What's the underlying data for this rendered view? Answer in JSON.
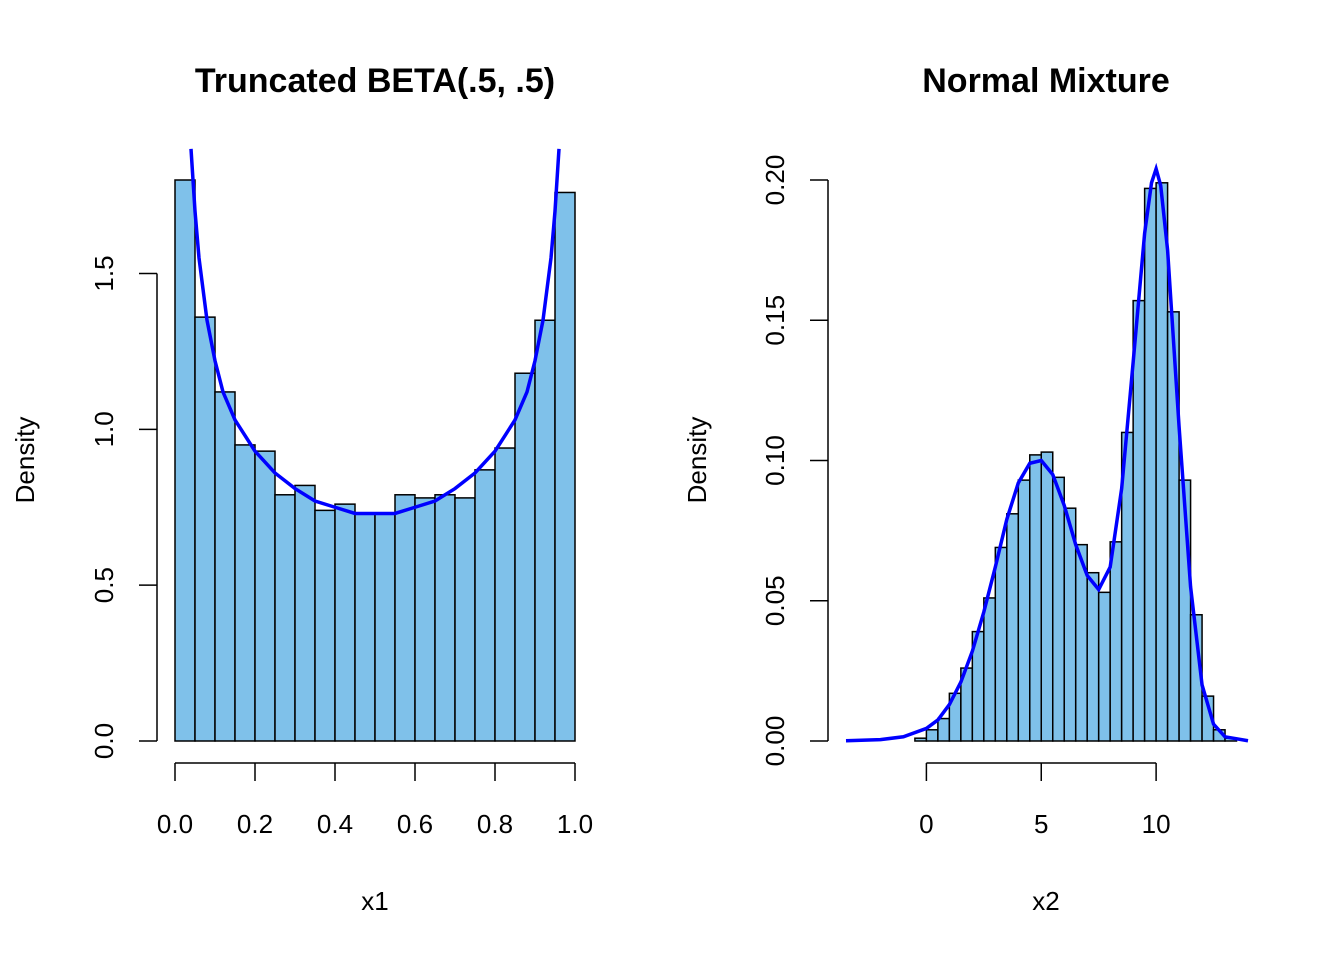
{
  "colors": {
    "bar_fill": "#7FC1EA",
    "bar_stroke": "#000000",
    "curve": "#0000FF",
    "axis": "#000000",
    "background": "#FFFFFF"
  },
  "chart_data": [
    {
      "type": "bar",
      "title": "Truncated BETA(.5, .5)",
      "xlabel": "x1",
      "ylabel": "Density",
      "xlim": [
        0,
        1
      ],
      "ylim": [
        0,
        1.8
      ],
      "xticks": [
        0.0,
        0.2,
        0.4,
        0.6,
        0.8,
        1.0
      ],
      "xtick_labels": [
        "0.0",
        "0.2",
        "0.4",
        "0.6",
        "0.8",
        "1.0"
      ],
      "yticks": [
        0.0,
        0.5,
        1.0,
        1.5
      ],
      "ytick_labels": [
        "0.0",
        "0.5",
        "1.0",
        "1.5"
      ],
      "bin_edges": [
        0,
        0.05,
        0.1,
        0.15,
        0.2,
        0.25,
        0.3,
        0.35,
        0.4,
        0.45,
        0.5,
        0.55,
        0.6,
        0.65,
        0.7,
        0.75,
        0.8,
        0.85,
        0.9,
        0.95,
        1.0
      ],
      "density": [
        1.8,
        1.36,
        1.12,
        0.95,
        0.93,
        0.79,
        0.82,
        0.74,
        0.76,
        0.73,
        0.73,
        0.79,
        0.78,
        0.79,
        0.78,
        0.87,
        0.94,
        1.18,
        1.35,
        1.76
      ],
      "curve": {
        "description": "BETA(.5, .5) density",
        "x": [
          0.04,
          0.05,
          0.06,
          0.08,
          0.1,
          0.12,
          0.15,
          0.2,
          0.25,
          0.3,
          0.35,
          0.4,
          0.45,
          0.5,
          0.55,
          0.6,
          0.65,
          0.7,
          0.75,
          0.8,
          0.85,
          0.88,
          0.9,
          0.92,
          0.94,
          0.95,
          0.96
        ],
        "y": [
          1.9,
          1.7,
          1.55,
          1.35,
          1.22,
          1.12,
          1.03,
          0.93,
          0.86,
          0.81,
          0.77,
          0.75,
          0.73,
          0.73,
          0.73,
          0.75,
          0.77,
          0.81,
          0.86,
          0.93,
          1.03,
          1.12,
          1.22,
          1.35,
          1.55,
          1.7,
          1.9
        ]
      }
    },
    {
      "type": "bar",
      "title": "Normal Mixture",
      "xlabel": "x2",
      "ylabel": "Density",
      "xlim": [
        -3.5,
        14
      ],
      "ylim": [
        0,
        0.2
      ],
      "xticks": [
        0,
        5,
        10
      ],
      "xtick_labels": [
        "0",
        "5",
        "10"
      ],
      "yticks": [
        0.0,
        0.05,
        0.1,
        0.15,
        0.2
      ],
      "ytick_labels": [
        "0.00",
        "0.05",
        "0.10",
        "0.15",
        "0.20"
      ],
      "bin_edges": [
        -0.5,
        0,
        0.5,
        1,
        1.5,
        2,
        2.5,
        3,
        3.5,
        4,
        4.5,
        5,
        5.5,
        6,
        6.5,
        7,
        7.5,
        8,
        8.5,
        9,
        9.5,
        10,
        10.5,
        11,
        11.5,
        12,
        12.5,
        13,
        13.5
      ],
      "density": [
        0.001,
        0.004,
        0.008,
        0.017,
        0.026,
        0.039,
        0.051,
        0.069,
        0.081,
        0.093,
        0.102,
        0.103,
        0.094,
        0.083,
        0.07,
        0.06,
        0.053,
        0.071,
        0.11,
        0.157,
        0.197,
        0.199,
        0.153,
        0.093,
        0.045,
        0.016,
        0.004,
        0.001
      ],
      "curve": {
        "description": "Normal mixture density",
        "x": [
          -3.5,
          -2,
          -1,
          0,
          0.5,
          1,
          1.5,
          2,
          2.5,
          3,
          3.5,
          4,
          4.5,
          5,
          5.5,
          6,
          6.5,
          7,
          7.5,
          8,
          8.5,
          9,
          9.5,
          9.8,
          10,
          10.2,
          10.5,
          11,
          11.5,
          12,
          12.5,
          13,
          14
        ],
        "y": [
          0.0001,
          0.0005,
          0.0015,
          0.0045,
          0.0075,
          0.013,
          0.021,
          0.032,
          0.046,
          0.062,
          0.079,
          0.092,
          0.099,
          0.1,
          0.095,
          0.084,
          0.07,
          0.059,
          0.054,
          0.062,
          0.09,
          0.135,
          0.181,
          0.199,
          0.204,
          0.198,
          0.175,
          0.112,
          0.055,
          0.02,
          0.006,
          0.0015,
          0.0001
        ]
      }
    }
  ]
}
